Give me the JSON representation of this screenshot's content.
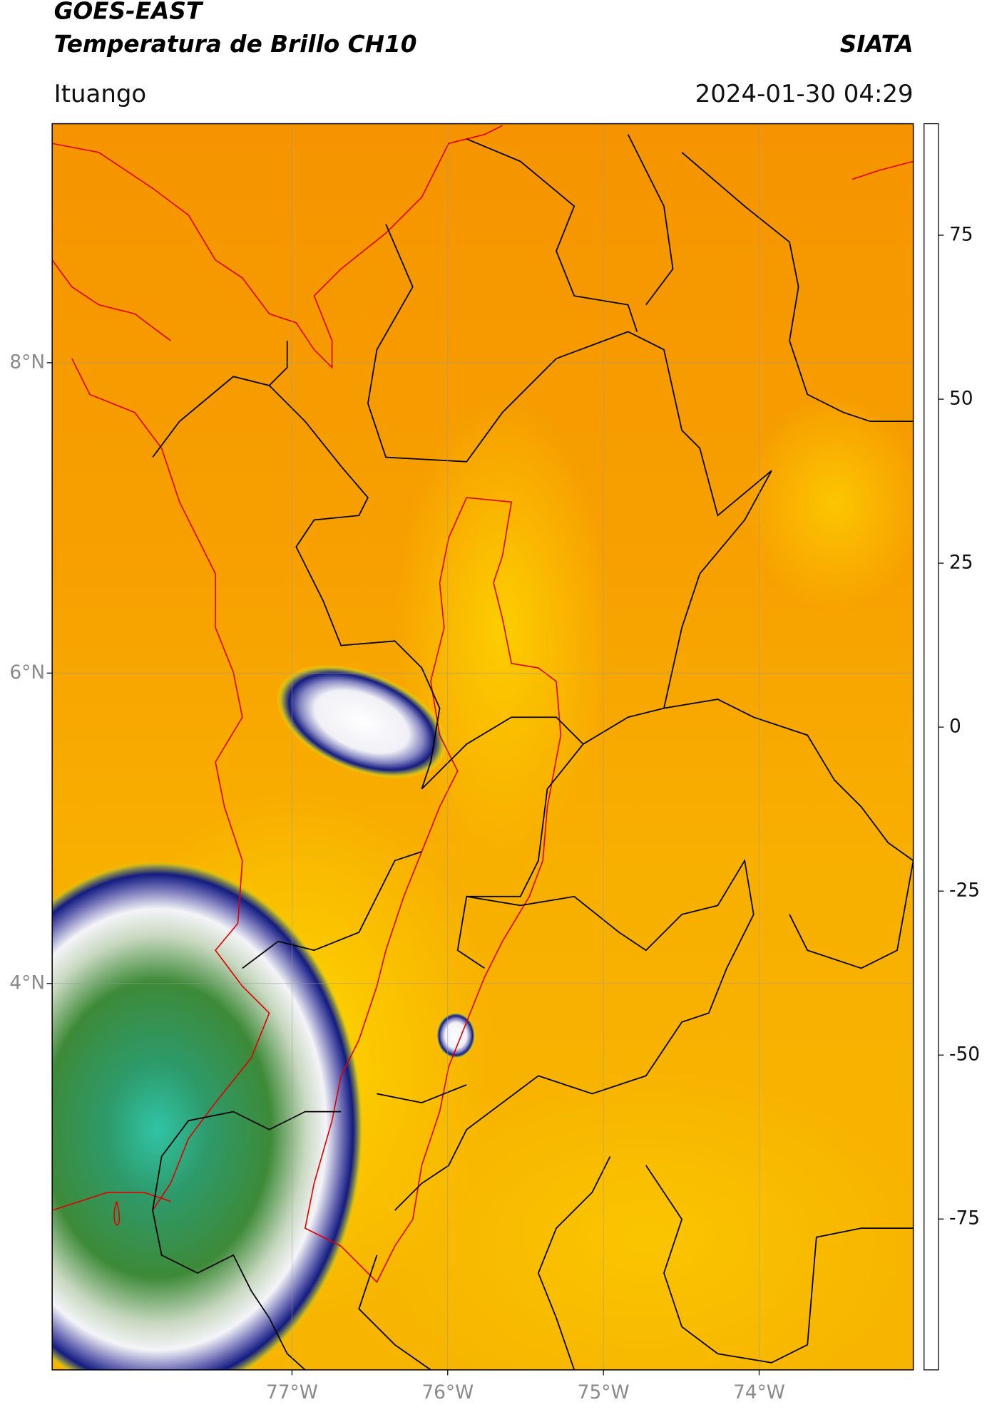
{
  "header": {
    "title": "GOES-EAST",
    "subtitle": "Temperatura de Brillo CH10",
    "brand": "SIATA",
    "location": "Ituango",
    "datetime": "2024-01-30 04:29"
  },
  "map": {
    "lat_range": [
      1.51,
      9.54
    ],
    "lon_range": [
      -78.54,
      -73.01
    ],
    "grid": true,
    "lat_ticks": [
      {
        "value": 8,
        "label": "8°N"
      },
      {
        "value": 6,
        "label": "6°N"
      },
      {
        "value": 4,
        "label": "4°N"
      }
    ],
    "lon_ticks": [
      {
        "value": -77,
        "label": "77°W"
      },
      {
        "value": -76,
        "label": "76°W"
      },
      {
        "value": -75,
        "label": "75°W"
      },
      {
        "value": -74,
        "label": "74°W"
      }
    ]
  },
  "colorbar": {
    "range": [
      -98,
      92
    ],
    "ticks": [
      75,
      50,
      25,
      0,
      -25,
      -50,
      -75
    ],
    "colormap": [
      {
        "value": -98,
        "color": "#ffffff"
      },
      {
        "value": -95,
        "color": "#ffffff"
      },
      {
        "value": -94.9,
        "color": "#22e6d6"
      },
      {
        "value": -75,
        "color": "#2aa88a"
      },
      {
        "value": -65,
        "color": "#3a8a30"
      },
      {
        "value": -58,
        "color": "#9cc08a"
      },
      {
        "value": -50,
        "color": "#ffffff"
      },
      {
        "value": -40,
        "color": "#9090c8"
      },
      {
        "value": -28,
        "color": "#101a80"
      },
      {
        "value": -22,
        "color": "#8a8a50"
      },
      {
        "value": -15,
        "color": "#ffff00"
      },
      {
        "value": 0,
        "color": "#ff9900"
      },
      {
        "value": 8,
        "color": "#ff0000"
      },
      {
        "value": 8.1,
        "color": "#000000"
      },
      {
        "value": 92,
        "color": "#000000"
      }
    ]
  }
}
